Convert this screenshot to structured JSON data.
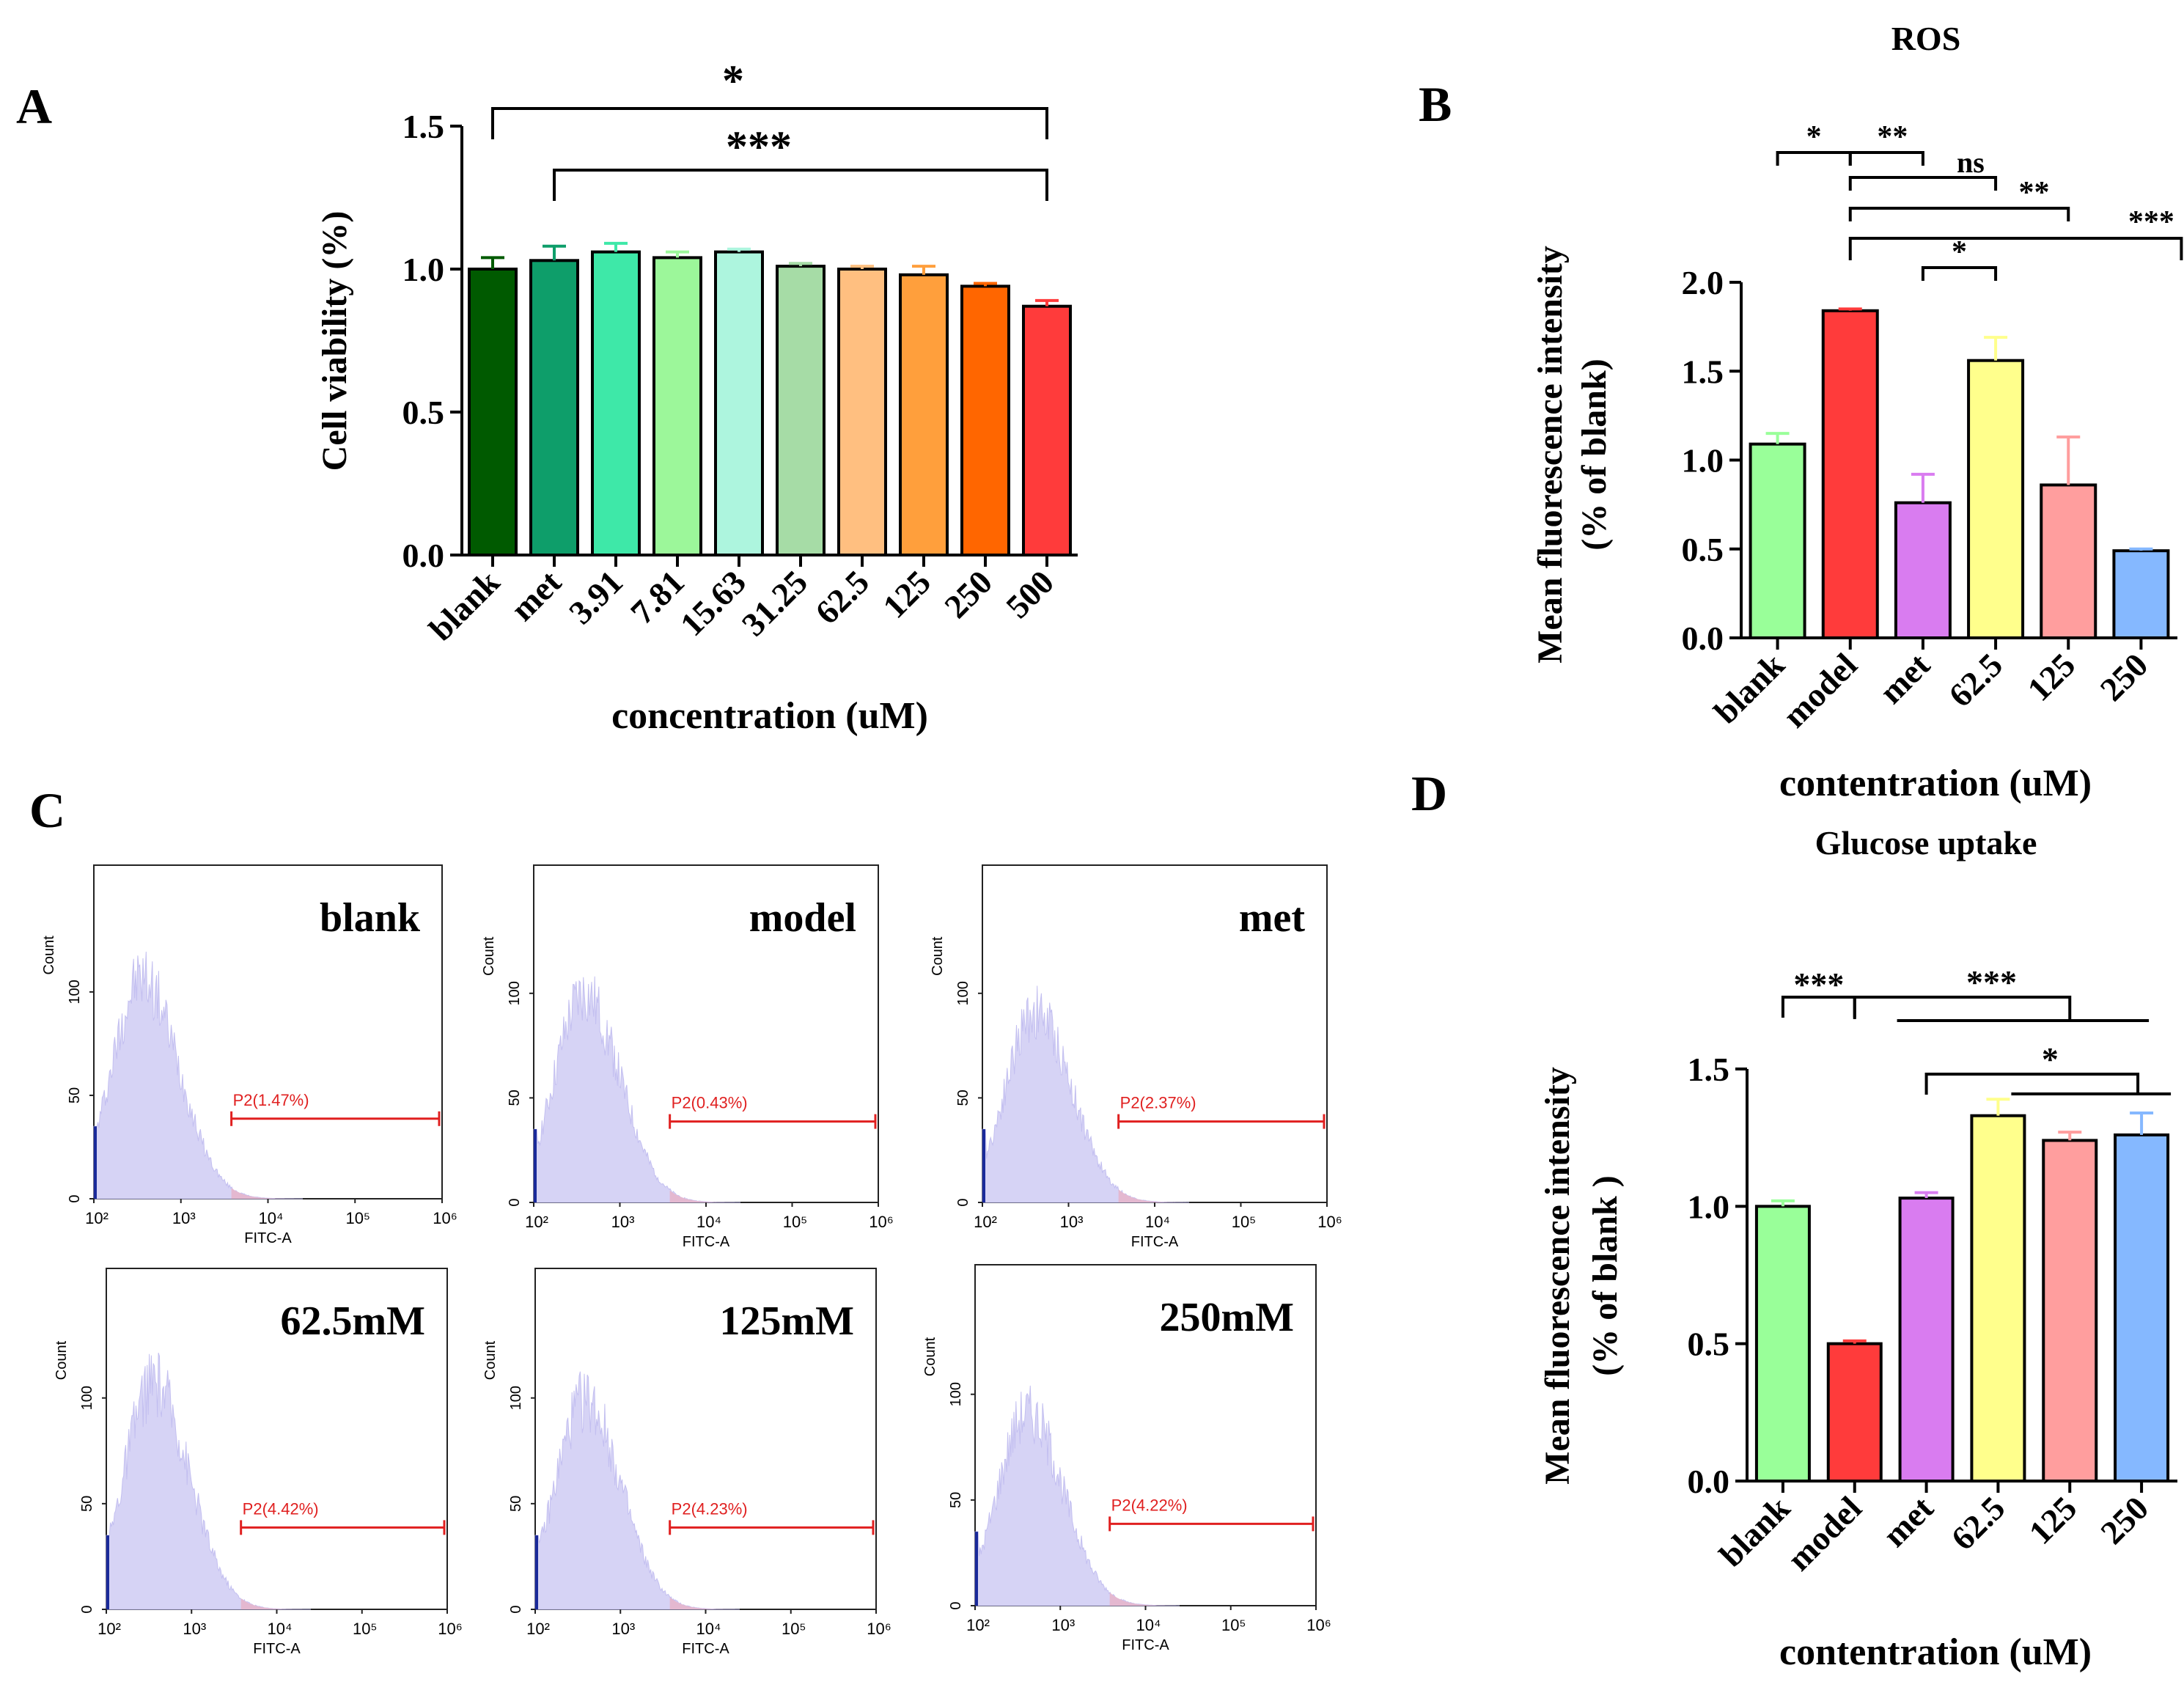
{
  "chart_data": [
    {
      "panel": "A",
      "type": "bar",
      "title": "",
      "xlabel": "concentration (uM)",
      "ylabel": "Cell viability (%)",
      "ylim": [
        0,
        1.5
      ],
      "yticks": [
        "0.0",
        "0.5",
        "1.0",
        "1.5"
      ],
      "categories": [
        "blank",
        "met",
        "3.91",
        "7.81",
        "15.63",
        "31.25",
        "62.5",
        "125",
        "250",
        "500"
      ],
      "values": [
        1.0,
        1.03,
        1.06,
        1.04,
        1.06,
        1.01,
        1.0,
        0.98,
        0.94,
        0.87
      ],
      "errors": [
        0.04,
        0.05,
        0.03,
        0.02,
        0.01,
        0.01,
        0.01,
        0.03,
        0.01,
        0.02
      ],
      "colors": [
        "#005a00",
        "#0e9e6a",
        "#3ee8a8",
        "#9cf79a",
        "#adf5de",
        "#a6dca6",
        "#ffbf80",
        "#ff9f3c",
        "#ff6600",
        "#ff3b3b"
      ],
      "significance": [
        {
          "from": "blank",
          "to": "500",
          "label": "*"
        },
        {
          "from": "met",
          "to": "500",
          "label": "***"
        }
      ]
    },
    {
      "panel": "B",
      "type": "bar",
      "title": "ROS",
      "xlabel": "contentration (uM)",
      "ylabel": "Mean fluorescence intensity",
      "ylabel2": "(% of blank)",
      "ylim": [
        0,
        2.0
      ],
      "yticks": [
        "0.0",
        "0.5",
        "1.0",
        "1.5",
        "2.0"
      ],
      "categories": [
        "blank",
        "model",
        "met",
        "62.5",
        "125",
        "250"
      ],
      "values": [
        1.09,
        1.84,
        0.76,
        1.56,
        0.86,
        0.49
      ],
      "errors": [
        0.06,
        0.01,
        0.16,
        0.13,
        0.27,
        0.01
      ],
      "colors": [
        "#99ff99",
        "#ff3b3b",
        "#d97cf0",
        "#ffff8c",
        "#ff9e9e",
        "#85b8ff"
      ],
      "significance": [
        {
          "from": "blank",
          "to": "model",
          "label": "*"
        },
        {
          "from": "model",
          "to": "met",
          "label": "**"
        },
        {
          "from": "model",
          "to": "62.5",
          "label": "ns"
        },
        {
          "from": "model",
          "to": "125",
          "label": "**"
        },
        {
          "from": "model",
          "to": "250",
          "label": "***"
        },
        {
          "from": "met",
          "to": "62.5",
          "label": "*"
        }
      ]
    },
    {
      "panel": "D",
      "type": "bar",
      "title": "Glucose uptake",
      "xlabel": "contentration (uM)",
      "ylabel": "Mean fluorescence intensity",
      "ylabel2": "(% of blank )",
      "ylim": [
        0,
        1.5
      ],
      "yticks": [
        "0.0",
        "0.5",
        "1.0",
        "1.5"
      ],
      "categories": [
        "blank",
        "model",
        "met",
        "62.5",
        "125",
        "250"
      ],
      "values": [
        1.0,
        0.5,
        1.03,
        1.33,
        1.24,
        1.26
      ],
      "errors": [
        0.02,
        0.01,
        0.02,
        0.06,
        0.03,
        0.08
      ],
      "colors": [
        "#99ff99",
        "#ff3b3b",
        "#d97cf0",
        "#ffff8c",
        "#ff9e9e",
        "#85b8ff"
      ],
      "significance": [
        {
          "from": "blank",
          "to": "model",
          "label": "***"
        },
        {
          "from": "model",
          "to": "62.5..250",
          "label": "***"
        },
        {
          "from": "met",
          "to": "62.5..250",
          "label": "*"
        }
      ]
    },
    {
      "panel": "C",
      "type": "histogram",
      "title": "",
      "xlabel": "FITC-A",
      "ylabel": "Count",
      "yticks": [
        "0",
        "50",
        "100"
      ],
      "xticks": [
        "10²",
        "10³",
        "10⁴",
        "10⁵",
        "10⁶"
      ],
      "x_decades": [
        2,
        3,
        4,
        5,
        6
      ],
      "gate_name": "P2",
      "gate_range_log10": [
        3.58,
        6.0
      ],
      "histogram_peak_log10": 2.55,
      "panels": [
        {
          "label": "blank",
          "gate_text": "P2(1.47%)",
          "gate_percent": 1.47
        },
        {
          "label": "model",
          "gate_text": "P2(0.43%)",
          "gate_percent": 0.43
        },
        {
          "label": "met",
          "gate_text": "P2(2.37%)",
          "gate_percent": 2.37
        },
        {
          "label": "62.5mM",
          "gate_text": "P2(4.42%)",
          "gate_percent": 4.42
        },
        {
          "label": "125mM",
          "gate_text": "P2(4.23%)",
          "gate_percent": 4.23
        },
        {
          "label": "250mM",
          "gate_text": "P2(4.22%)",
          "gate_percent": 4.22
        }
      ]
    }
  ],
  "panel_labels": {
    "a": "A",
    "b": "B",
    "c": "C",
    "d": "D"
  }
}
